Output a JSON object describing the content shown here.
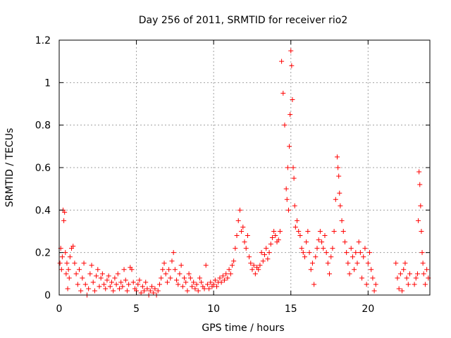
{
  "chart_data": {
    "type": "scatter",
    "title": "Day 256 of 2011, SRMTID for receiver rio2",
    "xlabel": "GPS time / hours",
    "ylabel": "SRMTID / TECUs",
    "xlim": [
      0,
      24
    ],
    "ylim": [
      0,
      1.2
    ],
    "xticks": [
      0,
      5,
      10,
      15,
      20
    ],
    "xtick_labels": [
      "0",
      "5",
      "10",
      "15",
      "20"
    ],
    "yticks": [
      0,
      0.2,
      0.4,
      0.6,
      0.8,
      1.0,
      1.2
    ],
    "ytick_labels": [
      "0",
      "0.2",
      "0.4",
      "0.6",
      "0.8",
      "1",
      "1.2"
    ],
    "grid": true,
    "marker": "+",
    "series": [
      {
        "name": "rio2",
        "color": "#ff0000",
        "points": [
          [
            0.05,
            0.15
          ],
          [
            0.1,
            0.22
          ],
          [
            0.15,
            0.12
          ],
          [
            0.2,
            0.18
          ],
          [
            0.25,
            0.4
          ],
          [
            0.3,
            0.35
          ],
          [
            0.35,
            0.39
          ],
          [
            0.4,
            0.2
          ],
          [
            0.45,
            0.1
          ],
          [
            0.5,
            0.15
          ],
          [
            0.55,
            0.03
          ],
          [
            0.6,
            0.12
          ],
          [
            0.65,
            0.08
          ],
          [
            0.7,
            0.18
          ],
          [
            0.8,
            0.22
          ],
          [
            0.9,
            0.23
          ],
          [
            1.0,
            0.15
          ],
          [
            1.1,
            0.1
          ],
          [
            1.2,
            0.05
          ],
          [
            1.3,
            0.12
          ],
          [
            1.4,
            0.02
          ],
          [
            1.5,
            0.08
          ],
          [
            1.6,
            0.15
          ],
          [
            1.7,
            0.05
          ],
          [
            1.8,
            0.0
          ],
          [
            1.9,
            0.03
          ],
          [
            2.0,
            0.1
          ],
          [
            2.1,
            0.14
          ],
          [
            2.2,
            0.06
          ],
          [
            2.3,
            0.02
          ],
          [
            2.4,
            0.09
          ],
          [
            2.5,
            0.12
          ],
          [
            2.6,
            0.04
          ],
          [
            2.7,
            0.08
          ],
          [
            2.8,
            0.1
          ],
          [
            2.9,
            0.05
          ],
          [
            3.0,
            0.03
          ],
          [
            3.1,
            0.07
          ],
          [
            3.2,
            0.09
          ],
          [
            3.3,
            0.04
          ],
          [
            3.4,
            0.06
          ],
          [
            3.5,
            0.02
          ],
          [
            3.6,
            0.08
          ],
          [
            3.7,
            0.05
          ],
          [
            3.8,
            0.1
          ],
          [
            3.9,
            0.03
          ],
          [
            4.0,
            0.06
          ],
          [
            4.1,
            0.04
          ],
          [
            4.2,
            0.12
          ],
          [
            4.3,
            0.07
          ],
          [
            4.4,
            0.02
          ],
          [
            4.5,
            0.05
          ],
          [
            4.6,
            0.13
          ],
          [
            4.7,
            0.12
          ],
          [
            4.8,
            0.06
          ],
          [
            4.9,
            0.03
          ],
          [
            5.0,
            0.02
          ],
          [
            5.1,
            0.05
          ],
          [
            5.2,
            0.07
          ],
          [
            5.3,
            0.01
          ],
          [
            5.4,
            0.04
          ],
          [
            5.5,
            0.02
          ],
          [
            5.6,
            0.06
          ],
          [
            5.7,
            0.03
          ],
          [
            5.8,
            0.0
          ],
          [
            5.9,
            0.02
          ],
          [
            6.0,
            0.04
          ],
          [
            6.1,
            0.01
          ],
          [
            6.2,
            0.03
          ],
          [
            6.3,
            0.0
          ],
          [
            6.4,
            0.02
          ],
          [
            6.5,
            0.05
          ],
          [
            6.6,
            0.08
          ],
          [
            6.7,
            0.12
          ],
          [
            6.8,
            0.15
          ],
          [
            6.9,
            0.1
          ],
          [
            7.0,
            0.06
          ],
          [
            7.1,
            0.12
          ],
          [
            7.2,
            0.08
          ],
          [
            7.3,
            0.16
          ],
          [
            7.4,
            0.2
          ],
          [
            7.5,
            0.12
          ],
          [
            7.6,
            0.07
          ],
          [
            7.7,
            0.05
          ],
          [
            7.8,
            0.1
          ],
          [
            7.9,
            0.14
          ],
          [
            8.0,
            0.04
          ],
          [
            8.1,
            0.08
          ],
          [
            8.2,
            0.06
          ],
          [
            8.3,
            0.02
          ],
          [
            8.4,
            0.1
          ],
          [
            8.5,
            0.08
          ],
          [
            8.6,
            0.04
          ],
          [
            8.7,
            0.06
          ],
          [
            8.8,
            0.03
          ],
          [
            8.9,
            0.05
          ],
          [
            9.0,
            0.02
          ],
          [
            9.1,
            0.08
          ],
          [
            9.2,
            0.06
          ],
          [
            9.3,
            0.04
          ],
          [
            9.4,
            0.03
          ],
          [
            9.5,
            0.14
          ],
          [
            9.6,
            0.05
          ],
          [
            9.7,
            0.03
          ],
          [
            9.8,
            0.06
          ],
          [
            9.9,
            0.04
          ],
          [
            10.0,
            0.05
          ],
          [
            10.1,
            0.07
          ],
          [
            10.2,
            0.04
          ],
          [
            10.3,
            0.06
          ],
          [
            10.4,
            0.08
          ],
          [
            10.5,
            0.06
          ],
          [
            10.6,
            0.09
          ],
          [
            10.7,
            0.07
          ],
          [
            10.8,
            0.1
          ],
          [
            10.9,
            0.08
          ],
          [
            11.0,
            0.12
          ],
          [
            11.1,
            0.1
          ],
          [
            11.2,
            0.14
          ],
          [
            11.3,
            0.16
          ],
          [
            11.4,
            0.22
          ],
          [
            11.5,
            0.28
          ],
          [
            11.6,
            0.35
          ],
          [
            11.7,
            0.4
          ],
          [
            11.8,
            0.3
          ],
          [
            11.9,
            0.32
          ],
          [
            12.0,
            0.25
          ],
          [
            12.1,
            0.22
          ],
          [
            12.2,
            0.28
          ],
          [
            12.3,
            0.18
          ],
          [
            12.4,
            0.15
          ],
          [
            12.5,
            0.12
          ],
          [
            12.6,
            0.14
          ],
          [
            12.7,
            0.1
          ],
          [
            12.8,
            0.13
          ],
          [
            12.9,
            0.12
          ],
          [
            13.0,
            0.14
          ],
          [
            13.1,
            0.2
          ],
          [
            13.2,
            0.16
          ],
          [
            13.3,
            0.19
          ],
          [
            13.4,
            0.22
          ],
          [
            13.5,
            0.17
          ],
          [
            13.6,
            0.2
          ],
          [
            13.7,
            0.24
          ],
          [
            13.8,
            0.27
          ],
          [
            13.9,
            0.3
          ],
          [
            14.0,
            0.28
          ],
          [
            14.1,
            0.25
          ],
          [
            14.2,
            0.26
          ],
          [
            14.3,
            0.3
          ],
          [
            14.4,
            1.1
          ],
          [
            14.5,
            0.95
          ],
          [
            14.6,
            0.8
          ],
          [
            14.7,
            0.5
          ],
          [
            14.75,
            0.45
          ],
          [
            14.8,
            0.6
          ],
          [
            14.85,
            0.4
          ],
          [
            14.9,
            0.7
          ],
          [
            14.95,
            0.85
          ],
          [
            15.0,
            1.15
          ],
          [
            15.05,
            1.08
          ],
          [
            15.1,
            0.92
          ],
          [
            15.15,
            0.6
          ],
          [
            15.2,
            0.55
          ],
          [
            15.25,
            0.42
          ],
          [
            15.3,
            0.32
          ],
          [
            15.4,
            0.35
          ],
          [
            15.5,
            0.3
          ],
          [
            15.6,
            0.28
          ],
          [
            15.7,
            0.22
          ],
          [
            15.8,
            0.2
          ],
          [
            15.9,
            0.18
          ],
          [
            16.0,
            0.25
          ],
          [
            16.1,
            0.3
          ],
          [
            16.2,
            0.2
          ],
          [
            16.3,
            0.12
          ],
          [
            16.4,
            0.15
          ],
          [
            16.5,
            0.05
          ],
          [
            16.6,
            0.18
          ],
          [
            16.7,
            0.22
          ],
          [
            16.8,
            0.26
          ],
          [
            16.9,
            0.3
          ],
          [
            17.0,
            0.25
          ],
          [
            17.1,
            0.22
          ],
          [
            17.2,
            0.28
          ],
          [
            17.3,
            0.2
          ],
          [
            17.4,
            0.15
          ],
          [
            17.5,
            0.1
          ],
          [
            17.6,
            0.18
          ],
          [
            17.7,
            0.22
          ],
          [
            17.8,
            0.3
          ],
          [
            17.9,
            0.45
          ],
          [
            18.0,
            0.65
          ],
          [
            18.05,
            0.6
          ],
          [
            18.1,
            0.56
          ],
          [
            18.15,
            0.48
          ],
          [
            18.2,
            0.42
          ],
          [
            18.3,
            0.35
          ],
          [
            18.4,
            0.3
          ],
          [
            18.5,
            0.25
          ],
          [
            18.6,
            0.2
          ],
          [
            18.7,
            0.15
          ],
          [
            18.8,
            0.1
          ],
          [
            18.9,
            0.22
          ],
          [
            19.0,
            0.18
          ],
          [
            19.1,
            0.12
          ],
          [
            19.2,
            0.2
          ],
          [
            19.3,
            0.15
          ],
          [
            19.4,
            0.25
          ],
          [
            19.5,
            0.2
          ],
          [
            19.6,
            0.08
          ],
          [
            19.7,
            0.18
          ],
          [
            19.8,
            0.22
          ],
          [
            19.9,
            0.05
          ],
          [
            20.0,
            0.15
          ],
          [
            20.1,
            0.2
          ],
          [
            20.2,
            0.12
          ],
          [
            20.3,
            0.08
          ],
          [
            20.4,
            0.02
          ],
          [
            20.5,
            0.05
          ],
          [
            21.8,
            0.15
          ],
          [
            21.9,
            0.08
          ],
          [
            22.0,
            0.03
          ],
          [
            22.1,
            0.1
          ],
          [
            22.2,
            0.02
          ],
          [
            22.3,
            0.12
          ],
          [
            22.4,
            0.15
          ],
          [
            22.5,
            0.08
          ],
          [
            22.6,
            0.05
          ],
          [
            22.7,
            0.1
          ],
          [
            23.0,
            0.05
          ],
          [
            23.1,
            0.08
          ],
          [
            23.2,
            0.1
          ],
          [
            23.25,
            0.35
          ],
          [
            23.3,
            0.58
          ],
          [
            23.35,
            0.52
          ],
          [
            23.4,
            0.42
          ],
          [
            23.45,
            0.3
          ],
          [
            23.5,
            0.2
          ],
          [
            23.55,
            0.15
          ],
          [
            23.6,
            0.1
          ],
          [
            23.7,
            0.05
          ],
          [
            23.8,
            0.12
          ],
          [
            23.9,
            0.08
          ]
        ]
      }
    ]
  }
}
